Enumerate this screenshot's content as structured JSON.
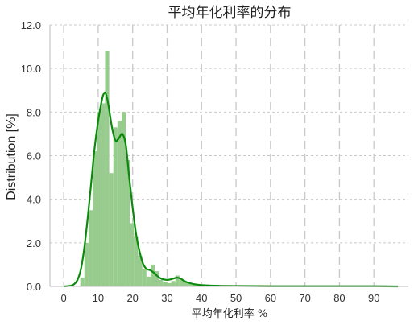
{
  "chart_data": {
    "type": "bar",
    "title": "平均年化利率的分布",
    "xlabel": "平均年化利率 %",
    "ylabel": "Distribution [%]",
    "xlim": [
      -4,
      100
    ],
    "ylim": [
      0,
      12
    ],
    "xticks": [
      "0",
      "10",
      "20",
      "30",
      "40",
      "50",
      "60",
      "70",
      "80",
      "90"
    ],
    "yticks": [
      "0.0",
      "2.0",
      "4.0",
      "6.0",
      "8.0",
      "10.0",
      "12.0"
    ],
    "grid": true,
    "colors": {
      "bars": "#98cb8e",
      "kde": "#0a8a0a",
      "grid": "#c8c8c8"
    },
    "histogram": {
      "bin_width": 1.2,
      "bins": [
        {
          "x0": 4.8,
          "value": 0.4
        },
        {
          "x0": 6.0,
          "value": 2.0
        },
        {
          "x0": 7.2,
          "value": 3.5
        },
        {
          "x0": 8.4,
          "value": 6.2
        },
        {
          "x0": 9.6,
          "value": 8.0
        },
        {
          "x0": 10.8,
          "value": 8.4
        },
        {
          "x0": 12.0,
          "value": 10.8
        },
        {
          "x0": 13.2,
          "value": 5.2
        },
        {
          "x0": 14.4,
          "value": 7.3
        },
        {
          "x0": 15.6,
          "value": 7.6
        },
        {
          "x0": 16.8,
          "value": 8.0
        },
        {
          "x0": 18.0,
          "value": 5.8
        },
        {
          "x0": 19.2,
          "value": 2.9
        },
        {
          "x0": 20.4,
          "value": 2.3
        },
        {
          "x0": 21.6,
          "value": 1.4
        },
        {
          "x0": 22.8,
          "value": 0.8
        },
        {
          "x0": 24.0,
          "value": 0.45
        },
        {
          "x0": 25.2,
          "value": 1.0
        },
        {
          "x0": 26.4,
          "value": 0.7
        },
        {
          "x0": 27.6,
          "value": 0.3
        },
        {
          "x0": 28.8,
          "value": 0.2
        },
        {
          "x0": 30.0,
          "value": 0.15
        },
        {
          "x0": 31.2,
          "value": 0.25
        },
        {
          "x0": 32.4,
          "value": 0.5
        },
        {
          "x0": 33.6,
          "value": 0.3
        },
        {
          "x0": 34.8,
          "value": 0.2
        },
        {
          "x0": 36.0,
          "value": 0.15
        },
        {
          "x0": 37.2,
          "value": 0.1
        },
        {
          "x0": 38.4,
          "value": 0.08
        },
        {
          "x0": 39.6,
          "value": 0.05
        }
      ]
    },
    "kde": {
      "x": [
        0,
        2,
        3,
        4,
        5,
        6,
        7,
        8,
        9,
        10,
        11,
        11.5,
        12,
        12.5,
        13,
        14,
        15,
        16,
        17,
        18,
        19,
        20,
        21,
        22,
        23,
        24,
        25,
        26,
        27,
        28,
        29,
        30,
        31,
        32,
        33,
        34,
        35,
        36,
        38,
        40,
        45,
        50,
        60,
        70,
        80,
        90,
        97
      ],
      "y": [
        0.0,
        0.03,
        0.1,
        0.3,
        0.8,
        1.8,
        3.2,
        4.8,
        6.4,
        7.6,
        8.5,
        8.8,
        8.9,
        8.7,
        8.3,
        7.3,
        6.7,
        6.8,
        7.0,
        6.5,
        5.0,
        3.6,
        2.4,
        1.6,
        1.05,
        0.8,
        0.75,
        0.65,
        0.5,
        0.38,
        0.32,
        0.3,
        0.32,
        0.37,
        0.4,
        0.35,
        0.25,
        0.18,
        0.1,
        0.06,
        0.03,
        0.02,
        0.01,
        0.01,
        0.01,
        0.01,
        0.0
      ]
    }
  }
}
